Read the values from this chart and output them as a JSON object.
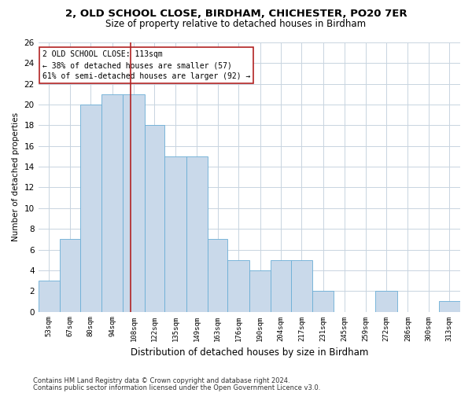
{
  "title1": "2, OLD SCHOOL CLOSE, BIRDHAM, CHICHESTER, PO20 7ER",
  "title2": "Size of property relative to detached houses in Birdham",
  "xlabel": "Distribution of detached houses by size in Birdham",
  "ylabel": "Number of detached properties",
  "footnote1": "Contains HM Land Registry data © Crown copyright and database right 2024.",
  "footnote2": "Contains public sector information licensed under the Open Government Licence v3.0.",
  "annotation_line1": "2 OLD SCHOOL CLOSE: 113sqm",
  "annotation_line2": "← 38% of detached houses are smaller (57)",
  "annotation_line3": "61% of semi-detached houses are larger (92) →",
  "bar_edges": [
    53,
    67,
    80,
    94,
    108,
    122,
    135,
    149,
    163,
    176,
    190,
    204,
    217,
    231,
    245,
    259,
    272,
    286,
    300,
    313,
    327
  ],
  "bar_heights": [
    3,
    7,
    20,
    21,
    21,
    18,
    15,
    15,
    7,
    5,
    4,
    5,
    5,
    2,
    0,
    0,
    2,
    0,
    0,
    1
  ],
  "bar_color": "#c9d9ea",
  "bar_edgecolor": "#6aaed6",
  "vline_color": "#b22222",
  "vline_x": 113,
  "annotation_box_edgecolor": "#b22222",
  "grid_color": "#c8d4e0",
  "background_color": "#ffffff",
  "ylim": [
    0,
    26
  ],
  "yticks": [
    0,
    2,
    4,
    6,
    8,
    10,
    12,
    14,
    16,
    18,
    20,
    22,
    24,
    26
  ],
  "title1_fontsize": 9.5,
  "title2_fontsize": 8.5,
  "xlabel_fontsize": 8.5,
  "ylabel_fontsize": 7.5,
  "xtick_fontsize": 6.5,
  "ytick_fontsize": 7.5,
  "annotation_fontsize": 7.0,
  "footnote_fontsize": 6.0
}
